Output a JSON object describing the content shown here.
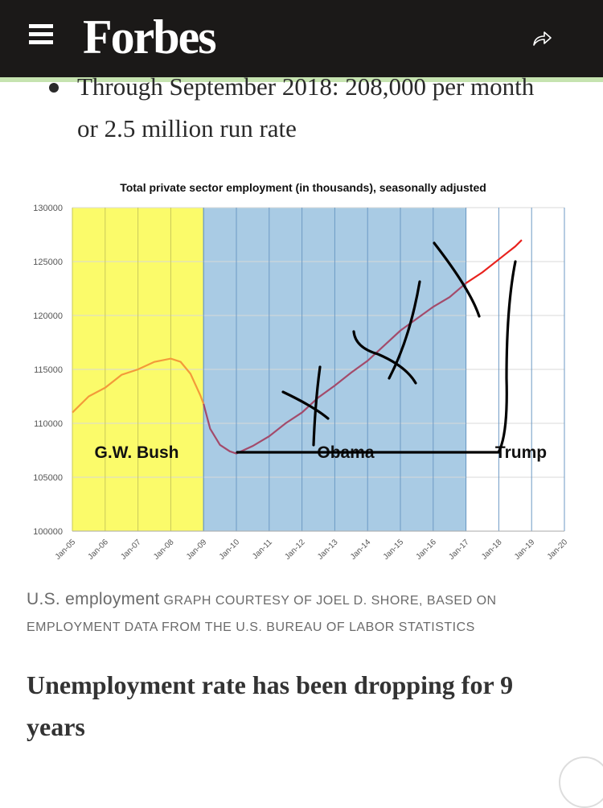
{
  "header": {
    "logo": "Forbes",
    "menu_icon": "hamburger-menu-icon",
    "share_icon": "share-arrow-icon",
    "background_color": "#1b1918",
    "accent_color": "#c6e3b0"
  },
  "article": {
    "bullet_text": "Through September 2018: 208,000 per month or 2.5 million run rate",
    "caption_title": "U.S. employment",
    "caption_credit": "GRAPH COURTESY OF JOEL D. SHORE, BASED ON EMPLOYMENT DATA FROM THE U.S. BUREAU OF LABOR STATISTICS",
    "section_heading": "Unemployment rate has been dropping for 9 years"
  },
  "chart_data": {
    "type": "line",
    "title": "Total private sector employment (in thousands), seasonally adjusted",
    "xlabel": "",
    "ylabel": "",
    "ylim": [
      100000,
      130000
    ],
    "yticks": [
      100000,
      105000,
      110000,
      115000,
      120000,
      125000,
      130000
    ],
    "xticks": [
      "Jan-05",
      "Jan-06",
      "Jan-07",
      "Jan-08",
      "Jan-09",
      "Jan-10",
      "Jan-11",
      "Jan-12",
      "Jan-13",
      "Jan-14",
      "Jan-15",
      "Jan-16",
      "Jan-17",
      "Jan-18",
      "Jan-19",
      "Jan-20"
    ],
    "xlim": [
      2005,
      2020
    ],
    "grid": true,
    "regions": [
      {
        "label": "G.W. Bush",
        "from": 2005,
        "to": 2009,
        "color": "#fbfb6a"
      },
      {
        "label": "Obama",
        "from": 2009,
        "to": 2017,
        "color": "#a9cbe4"
      },
      {
        "label": "Trump",
        "from": 2017,
        "to": 2020,
        "color": "#ffffff"
      }
    ],
    "series": [
      {
        "color": "#f39a3a",
        "points": [
          [
            2005.0,
            111000
          ],
          [
            2005.5,
            112500
          ],
          [
            2006.0,
            113300
          ],
          [
            2006.5,
            114500
          ],
          [
            2007.0,
            115000
          ],
          [
            2007.5,
            115700
          ],
          [
            2008.0,
            116000
          ],
          [
            2008.3,
            115700
          ],
          [
            2008.6,
            114600
          ],
          [
            2008.9,
            112600
          ],
          [
            2009.0,
            111800
          ]
        ]
      },
      {
        "color": "#a34b6b",
        "points": [
          [
            2009.0,
            111800
          ],
          [
            2009.2,
            109500
          ],
          [
            2009.5,
            108000
          ],
          [
            2009.8,
            107400
          ],
          [
            2010.0,
            107200
          ],
          [
            2010.5,
            107900
          ],
          [
            2011.0,
            108800
          ],
          [
            2011.5,
            110000
          ],
          [
            2012.0,
            111000
          ],
          [
            2012.5,
            112400
          ],
          [
            2013.0,
            113500
          ],
          [
            2013.5,
            114700
          ],
          [
            2014.0,
            115800
          ],
          [
            2014.5,
            117200
          ],
          [
            2015.0,
            118600
          ],
          [
            2015.5,
            119700
          ],
          [
            2016.0,
            120800
          ],
          [
            2016.5,
            121700
          ],
          [
            2017.0,
            123000
          ]
        ]
      },
      {
        "color": "#e8221e",
        "points": [
          [
            2017.0,
            123000
          ],
          [
            2017.5,
            124000
          ],
          [
            2018.0,
            125200
          ],
          [
            2018.5,
            126400
          ],
          [
            2018.7,
            127000
          ]
        ]
      }
    ]
  }
}
